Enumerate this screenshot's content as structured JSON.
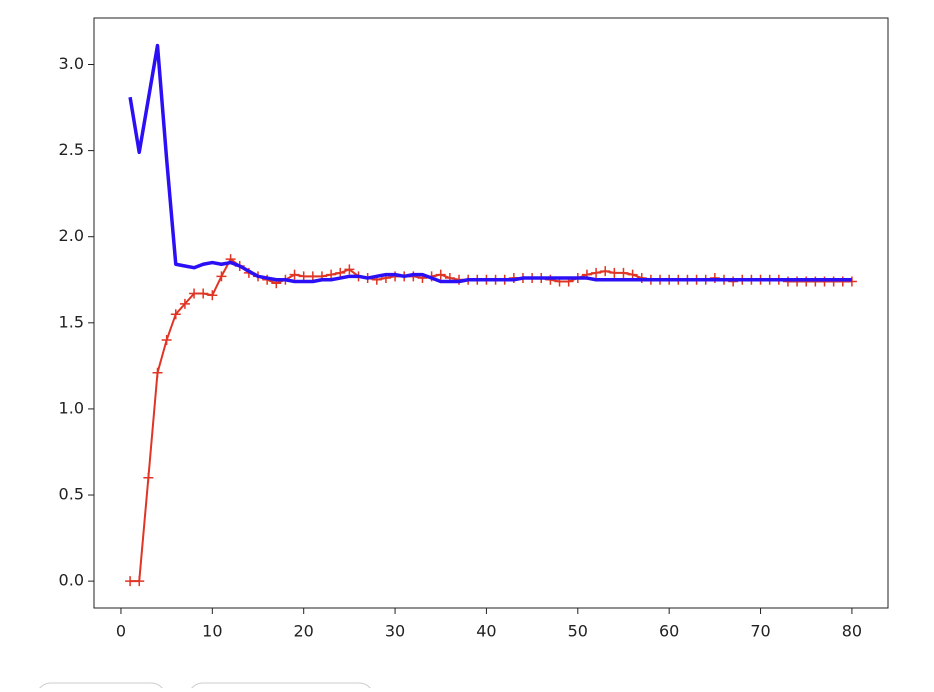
{
  "chart_data": {
    "type": "line",
    "x": [
      1,
      2,
      3,
      4,
      5,
      6,
      7,
      8,
      9,
      10,
      11,
      12,
      13,
      14,
      15,
      16,
      17,
      18,
      19,
      20,
      21,
      22,
      23,
      24,
      25,
      26,
      27,
      28,
      29,
      30,
      31,
      32,
      33,
      34,
      35,
      36,
      37,
      38,
      39,
      40,
      41,
      42,
      43,
      44,
      45,
      46,
      47,
      48,
      49,
      50,
      51,
      52,
      53,
      54,
      55,
      56,
      57,
      58,
      59,
      60,
      61,
      62,
      63,
      64,
      65,
      66,
      67,
      68,
      69,
      70,
      71,
      72,
      73,
      74,
      75,
      76,
      77,
      78,
      79,
      80
    ],
    "series": [
      {
        "color": "#e03524",
        "marker": "+",
        "width": 2,
        "values": [
          0,
          0,
          0.6,
          1.21,
          1.4,
          1.55,
          1.61,
          1.67,
          1.67,
          1.66,
          1.77,
          1.87,
          1.83,
          1.79,
          1.77,
          1.75,
          1.73,
          1.75,
          1.78,
          1.77,
          1.77,
          1.77,
          1.78,
          1.79,
          1.81,
          1.77,
          1.76,
          1.75,
          1.76,
          1.77,
          1.77,
          1.77,
          1.76,
          1.77,
          1.78,
          1.76,
          1.75,
          1.75,
          1.75,
          1.75,
          1.75,
          1.75,
          1.76,
          1.76,
          1.76,
          1.76,
          1.75,
          1.74,
          1.74,
          1.76,
          1.78,
          1.79,
          1.8,
          1.79,
          1.79,
          1.78,
          1.76,
          1.75,
          1.75,
          1.75,
          1.75,
          1.75,
          1.75,
          1.75,
          1.76,
          1.75,
          1.74,
          1.75,
          1.75,
          1.75,
          1.75,
          1.75,
          1.74,
          1.74,
          1.74,
          1.74,
          1.74,
          1.74,
          1.74,
          1.74
        ]
      },
      {
        "color": "#2b10f5",
        "width": 3.5,
        "values": [
          2.81,
          2.49,
          2.8,
          3.11,
          2.45,
          1.84,
          1.83,
          1.82,
          1.84,
          1.85,
          1.84,
          1.85,
          1.83,
          1.8,
          1.77,
          1.76,
          1.75,
          1.75,
          1.74,
          1.74,
          1.74,
          1.75,
          1.75,
          1.76,
          1.77,
          1.77,
          1.76,
          1.77,
          1.78,
          1.78,
          1.77,
          1.78,
          1.78,
          1.76,
          1.74,
          1.74,
          1.74,
          1.75,
          1.75,
          1.75,
          1.75,
          1.75,
          1.75,
          1.76,
          1.76,
          1.76,
          1.76,
          1.76,
          1.76,
          1.76,
          1.76,
          1.75,
          1.75,
          1.75,
          1.75,
          1.75,
          1.75,
          1.75,
          1.75,
          1.75,
          1.75,
          1.75,
          1.75,
          1.75,
          1.75,
          1.75,
          1.75,
          1.75,
          1.75,
          1.75,
          1.75,
          1.75,
          1.75,
          1.75,
          1.75,
          1.75,
          1.75,
          1.75,
          1.75,
          1.75
        ]
      }
    ],
    "xlim": [
      -2.95,
      83.95
    ],
    "xticks": [
      0,
      10,
      20,
      30,
      40,
      50,
      60,
      70,
      80
    ],
    "ylim": [
      -0.156,
      3.27
    ],
    "yticks": [
      {
        "value": 0,
        "label": "0.0"
      },
      0.5,
      {
        "value": 1,
        "label": "1.0"
      },
      1.5,
      {
        "value": 2,
        "label": "2.0"
      },
      2.5,
      {
        "value": 3,
        "label": "3.0"
      }
    ]
  }
}
